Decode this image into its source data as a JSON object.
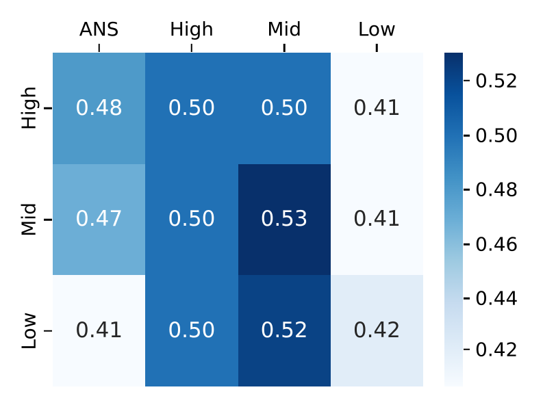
{
  "figure": {
    "background_color": "#ffffff",
    "axis_text_color": "#000000"
  },
  "chart_data": {
    "type": "heatmap",
    "title": "",
    "xlabel": "",
    "ylabel": "",
    "columns": [
      "ANS",
      "High",
      "Mid",
      "Low"
    ],
    "rows": [
      "High",
      "Mid",
      "Low"
    ],
    "values": [
      [
        0.48,
        0.5,
        0.5,
        0.41
      ],
      [
        0.47,
        0.5,
        0.53,
        0.41
      ],
      [
        0.41,
        0.5,
        0.52,
        0.42
      ]
    ],
    "cell_labels": [
      [
        "0.48",
        "0.50",
        "0.50",
        "0.41"
      ],
      [
        "0.47",
        "0.50",
        "0.53",
        "0.41"
      ],
      [
        "0.41",
        "0.50",
        "0.52",
        "0.42"
      ]
    ],
    "cell_colors": [
      [
        "#4e9ac9",
        "#2171b5",
        "#2171b5",
        "#f7fbff"
      ],
      [
        "#6caed6",
        "#2171b5",
        "#08306b",
        "#f7fbff"
      ],
      [
        "#f7fbff",
        "#2171b5",
        "#0a4385",
        "#e1edf8"
      ]
    ],
    "cell_text_colors": [
      [
        "#ffffff",
        "#ffffff",
        "#ffffff",
        "#262626"
      ],
      [
        "#ffffff",
        "#ffffff",
        "#ffffff",
        "#262626"
      ],
      [
        "#262626",
        "#ffffff",
        "#ffffff",
        "#262626"
      ]
    ],
    "colormap": "Blues",
    "grid": false,
    "legend_position": "right-colorbar",
    "colorbar": {
      "ticks": [
        {
          "label": "0.52",
          "pos_pct": 8.4
        },
        {
          "label": "0.50",
          "pos_pct": 24.8
        },
        {
          "label": "0.48",
          "pos_pct": 41.0
        },
        {
          "label": "0.46",
          "pos_pct": 57.4
        },
        {
          "label": "0.44",
          "pos_pct": 73.6
        },
        {
          "label": "0.42",
          "pos_pct": 88.9
        }
      ],
      "gradient_stops_top_to_bottom": [
        "#08306b",
        "#08519c",
        "#2171b5",
        "#4292c6",
        "#6baed6",
        "#9ecae1",
        "#c6dbef",
        "#deebf7",
        "#f7fbff"
      ]
    }
  }
}
